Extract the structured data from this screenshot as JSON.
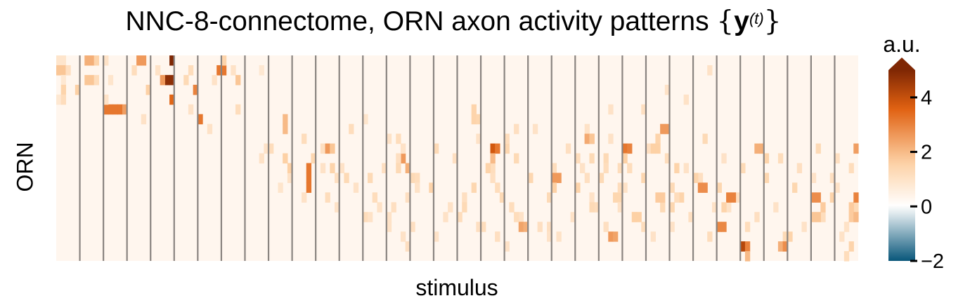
{
  "chart_data": {
    "type": "heatmap",
    "title_parts": {
      "text": "NNC-8-connectome, ORN axon activity patterns ",
      "math_open": "{",
      "vector": "y",
      "superscript": "(t)",
      "math_close": "}"
    },
    "xlabel": "stimulus",
    "ylabel": "ORN",
    "n_rows": 21,
    "n_cols": 170,
    "stimulus_block_width": 5,
    "n_stimulus_blocks": 34,
    "grid": false,
    "colorbar": {
      "label": "a.u.",
      "range": [
        -2,
        5
      ],
      "ticks": [
        -2,
        0,
        2,
        4
      ],
      "tick_labels": [
        "−2",
        "0",
        "2",
        "4"
      ],
      "extend": "max",
      "colors": {
        "low": "#08567a",
        "zero": "#ffffff",
        "mid": "#fdd1a5",
        "high": "#e06010",
        "max": "#7f2704"
      }
    },
    "background_value": 0.3,
    "cells": [
      [
        0,
        0,
        0.9
      ],
      [
        0,
        1,
        0.9
      ],
      [
        1,
        0,
        1.8
      ],
      [
        1,
        1,
        1.8
      ],
      [
        1,
        2,
        1.1
      ],
      [
        2,
        1,
        0.8
      ],
      [
        3,
        1,
        1.5
      ],
      [
        4,
        0,
        0.8
      ],
      [
        4,
        1,
        1.2
      ],
      [
        0,
        6,
        2.2
      ],
      [
        0,
        7,
        2.2
      ],
      [
        0,
        8,
        1.5
      ],
      [
        2,
        6,
        1.8
      ],
      [
        2,
        7,
        1.8
      ],
      [
        2,
        8,
        1.2
      ],
      [
        3,
        4,
        1.6
      ],
      [
        5,
        10,
        3.2
      ],
      [
        5,
        11,
        3.2
      ],
      [
        5,
        12,
        3.2
      ],
      [
        5,
        13,
        3.2
      ],
      [
        5,
        14,
        2.5
      ],
      [
        4,
        10,
        1.0
      ],
      [
        0,
        10,
        1.0
      ],
      [
        2,
        11,
        0.9
      ],
      [
        0,
        17,
        2.6
      ],
      [
        0,
        18,
        2.6
      ],
      [
        1,
        16,
        1.2
      ],
      [
        3,
        19,
        1.6
      ],
      [
        6,
        18,
        1.0
      ],
      [
        0,
        24,
        5.0
      ],
      [
        2,
        23,
        4.8
      ],
      [
        2,
        24,
        4.8
      ],
      [
        2,
        22,
        2.6
      ],
      [
        4,
        24,
        3.5
      ],
      [
        1,
        21,
        1.0
      ],
      [
        1,
        28,
        1.2
      ],
      [
        3,
        29,
        3.0
      ],
      [
        2,
        27,
        1.3
      ],
      [
        5,
        28,
        1.0
      ],
      [
        6,
        30,
        3.2
      ],
      [
        1,
        34,
        3.2
      ],
      [
        1,
        35,
        3.2
      ],
      [
        0,
        35,
        1.5
      ],
      [
        2,
        33,
        1.0
      ],
      [
        7,
        32,
        1.0
      ],
      [
        1,
        37,
        1.0
      ],
      [
        2,
        38,
        1.8
      ],
      [
        5,
        38,
        1.2
      ],
      [
        1,
        43,
        0.8
      ],
      [
        9,
        44,
        1.0
      ],
      [
        9,
        45,
        1.2
      ],
      [
        10,
        43,
        1.0
      ],
      [
        10,
        48,
        1.6
      ],
      [
        12,
        49,
        1.0
      ],
      [
        13,
        47,
        0.9
      ],
      [
        8,
        52,
        1.2
      ],
      [
        10,
        54,
        1.4
      ],
      [
        14,
        52,
        1.0
      ],
      [
        9,
        56,
        1.1
      ],
      [
        11,
        56,
        1.0
      ],
      [
        14,
        57,
        1.2
      ],
      [
        7,
        62,
        1.2
      ],
      [
        11,
        60,
        1.0
      ],
      [
        12,
        61,
        1.3
      ],
      [
        15,
        59,
        1.0
      ],
      [
        6,
        65,
        0.9
      ],
      [
        12,
        66,
        1.3
      ],
      [
        16,
        65,
        1.2
      ],
      [
        8,
        70,
        1.0
      ],
      [
        11,
        69,
        1.1
      ],
      [
        17,
        70,
        1.0
      ],
      [
        12,
        75,
        1.3
      ],
      [
        14,
        74,
        1.1
      ],
      [
        17,
        75,
        1.1
      ],
      [
        9,
        80,
        1.3
      ],
      [
        13,
        79,
        1.5
      ],
      [
        18,
        80,
        1.0
      ],
      [
        10,
        84,
        1.1
      ],
      [
        15,
        83,
        1.0
      ],
      [
        16,
        85,
        1.2
      ],
      [
        8,
        89,
        1.0
      ],
      [
        13,
        88,
        1.4
      ],
      [
        17,
        89,
        1.1
      ],
      [
        11,
        92,
        1.2
      ],
      [
        14,
        94,
        1.1
      ],
      [
        18,
        93,
        1.0
      ],
      [
        10,
        97,
        1.3
      ],
      [
        15,
        96,
        1.2
      ],
      [
        16,
        98,
        1.0
      ],
      [
        7,
        101,
        1.0
      ],
      [
        12,
        100,
        1.4
      ],
      [
        17,
        102,
        1.1
      ],
      [
        11,
        105,
        1.2
      ],
      [
        14,
        104,
        1.3
      ],
      [
        18,
        106,
        1.0
      ],
      [
        9,
        108,
        1.1
      ],
      [
        13,
        110,
        1.5
      ],
      [
        16,
        109,
        1.0
      ],
      [
        10,
        113,
        1.3
      ],
      [
        12,
        112,
        1.1
      ],
      [
        15,
        114,
        1.2
      ],
      [
        8,
        117,
        1.0
      ],
      [
        14,
        118,
        1.4
      ],
      [
        17,
        116,
        1.1
      ],
      [
        11,
        121,
        1.2
      ],
      [
        13,
        120,
        1.0
      ],
      [
        16,
        122,
        1.3
      ],
      [
        9,
        125,
        1.1
      ],
      [
        12,
        124,
        1.4
      ],
      [
        18,
        126,
        1.0
      ],
      [
        10,
        129,
        1.2
      ],
      [
        15,
        128,
        1.3
      ],
      [
        17,
        130,
        1.0
      ],
      [
        11,
        133,
        1.0
      ],
      [
        14,
        132,
        1.5
      ],
      [
        16,
        134,
        1.1
      ],
      [
        8,
        137,
        1.3
      ],
      [
        12,
        136,
        1.1
      ],
      [
        18,
        138,
        1.2
      ],
      [
        10,
        141,
        1.0
      ],
      [
        13,
        140,
        1.4
      ],
      [
        15,
        142,
        1.0
      ],
      [
        11,
        145,
        1.3
      ],
      [
        14,
        144,
        1.1
      ],
      [
        17,
        146,
        1.2
      ],
      [
        9,
        149,
        1.0
      ],
      [
        12,
        150,
        1.4
      ],
      [
        16,
        148,
        1.1
      ],
      [
        10,
        153,
        1.2
      ],
      [
        15,
        152,
        1.0
      ],
      [
        18,
        154,
        1.3
      ],
      [
        11,
        157,
        1.1
      ],
      [
        13,
        156,
        1.4
      ],
      [
        17,
        158,
        1.0
      ],
      [
        9,
        161,
        1.3
      ],
      [
        12,
        160,
        1.0
      ],
      [
        16,
        162,
        1.2
      ],
      [
        10,
        165,
        1.1
      ],
      [
        14,
        164,
        1.5
      ],
      [
        18,
        166,
        1.0
      ],
      [
        11,
        168,
        1.2
      ],
      [
        15,
        169,
        1.3
      ],
      [
        17,
        167,
        1.0
      ],
      [
        6,
        48,
        2.0
      ],
      [
        7,
        48,
        2.0
      ],
      [
        5,
        88,
        1.5
      ],
      [
        6,
        88,
        1.5
      ],
      [
        6,
        89,
        1.4
      ],
      [
        9,
        57,
        2.6
      ],
      [
        9,
        58,
        1.8
      ],
      [
        10,
        73,
        2.6
      ],
      [
        11,
        74,
        2.2
      ],
      [
        9,
        95,
        1.4
      ],
      [
        11,
        53,
        3.2
      ],
      [
        12,
        53,
        3.2
      ],
      [
        13,
        53,
        3.2
      ],
      [
        11,
        49,
        1.6
      ],
      [
        9,
        92,
        3.8
      ],
      [
        9,
        93,
        3.2
      ],
      [
        10,
        92,
        2.0
      ],
      [
        11,
        91,
        1.5
      ],
      [
        12,
        105,
        2.6
      ],
      [
        12,
        106,
        2.6
      ],
      [
        13,
        105,
        1.6
      ],
      [
        8,
        112,
        2.4
      ],
      [
        8,
        113,
        2.4
      ],
      [
        10,
        116,
        1.3
      ],
      [
        9,
        120,
        3.2
      ],
      [
        9,
        121,
        3.0
      ],
      [
        10,
        120,
        1.6
      ],
      [
        7,
        128,
        2.6
      ],
      [
        7,
        129,
        2.6
      ],
      [
        8,
        127,
        1.5
      ],
      [
        13,
        136,
        2.8
      ],
      [
        13,
        137,
        2.8
      ],
      [
        12,
        135,
        1.5
      ],
      [
        14,
        142,
        3.0
      ],
      [
        14,
        143,
        3.0
      ],
      [
        15,
        141,
        1.5
      ],
      [
        9,
        148,
        2.2
      ],
      [
        9,
        149,
        2.2
      ],
      [
        10,
        150,
        1.5
      ],
      [
        14,
        160,
        2.8
      ],
      [
        14,
        161,
        2.8
      ],
      [
        15,
        162,
        1.7
      ],
      [
        17,
        98,
        2.4
      ],
      [
        17,
        99,
        2.2
      ],
      [
        16,
        97,
        1.2
      ],
      [
        18,
        117,
        2.6
      ],
      [
        18,
        118,
        2.4
      ],
      [
        17,
        140,
        2.9
      ],
      [
        17,
        141,
        2.9
      ],
      [
        16,
        160,
        1.8
      ],
      [
        16,
        161,
        1.8
      ],
      [
        19,
        145,
        4.2
      ],
      [
        19,
        146,
        3.0
      ],
      [
        20,
        146,
        2.0
      ],
      [
        19,
        153,
        2.2
      ],
      [
        19,
        154,
        2.8
      ],
      [
        18,
        155,
        1.5
      ],
      [
        10,
        110,
        1.2
      ],
      [
        11,
        111,
        1.0
      ],
      [
        9,
        126,
        1.6
      ],
      [
        9,
        127,
        1.6
      ],
      [
        14,
        113,
        1.0
      ],
      [
        15,
        113,
        1.3
      ],
      [
        14,
        119,
        1.4
      ],
      [
        15,
        119,
        1.0
      ],
      [
        13,
        130,
        1.3
      ],
      [
        14,
        131,
        1.2
      ],
      [
        15,
        139,
        1.0
      ],
      [
        11,
        131,
        1.5
      ],
      [
        16,
        122,
        1.6
      ],
      [
        16,
        123,
        1.6
      ],
      [
        17,
        124,
        1.2
      ],
      [
        14,
        127,
        1.7
      ],
      [
        14,
        128,
        1.7
      ],
      [
        15,
        130,
        1.4
      ],
      [
        12,
        164,
        1.1
      ],
      [
        13,
        165,
        1.0
      ],
      [
        15,
        168,
        1.7
      ],
      [
        16,
        168,
        1.7
      ],
      [
        19,
        168,
        1.5
      ],
      [
        20,
        167,
        1.2
      ],
      [
        9,
        169,
        2.5
      ],
      [
        14,
        169,
        3.0
      ],
      [
        16,
        169,
        2.0
      ],
      [
        1,
        138,
        1.0
      ],
      [
        3,
        129,
        1.0
      ],
      [
        4,
        133,
        1.0
      ],
      [
        5,
        117,
        1.0
      ],
      [
        5,
        124,
        1.1
      ],
      [
        7,
        112,
        1.0
      ],
      [
        8,
        112,
        2.3
      ],
      [
        8,
        113,
        1.8
      ],
      [
        7,
        97,
        1.1
      ],
      [
        8,
        95,
        1.2
      ],
      [
        11,
        119,
        1.2
      ],
      [
        12,
        115,
        1.3
      ],
      [
        13,
        119,
        1.2
      ],
      [
        11,
        116,
        1.2
      ],
      [
        17,
        104,
        1.1
      ],
      [
        18,
        104,
        1.0
      ],
      [
        19,
        95,
        1.0
      ],
      [
        18,
        93,
        1.1
      ],
      [
        11,
        58,
        1.5
      ],
      [
        12,
        59,
        1.1
      ],
      [
        13,
        63,
        1.0
      ],
      [
        16,
        66,
        1.0
      ],
      [
        14,
        67,
        1.2
      ],
      [
        15,
        68,
        1.0
      ],
      [
        15,
        71,
        1.1
      ],
      [
        16,
        70,
        1.0
      ],
      [
        12,
        92,
        1.1
      ],
      [
        13,
        93,
        1.2
      ],
      [
        14,
        94,
        1.3
      ],
      [
        10,
        72,
        1.1
      ],
      [
        11,
        72,
        1.3
      ],
      [
        12,
        76,
        1.2
      ],
      [
        13,
        76,
        1.0
      ],
      [
        14,
        86,
        1.1
      ],
      [
        15,
        86,
        1.3
      ],
      [
        16,
        82,
        1.0
      ],
      [
        17,
        90,
        1.2
      ],
      [
        18,
        73,
        1.0
      ],
      [
        19,
        74,
        1.1
      ],
      [
        8,
        72,
        1.2
      ],
      [
        9,
        73,
        1.0
      ]
    ]
  }
}
